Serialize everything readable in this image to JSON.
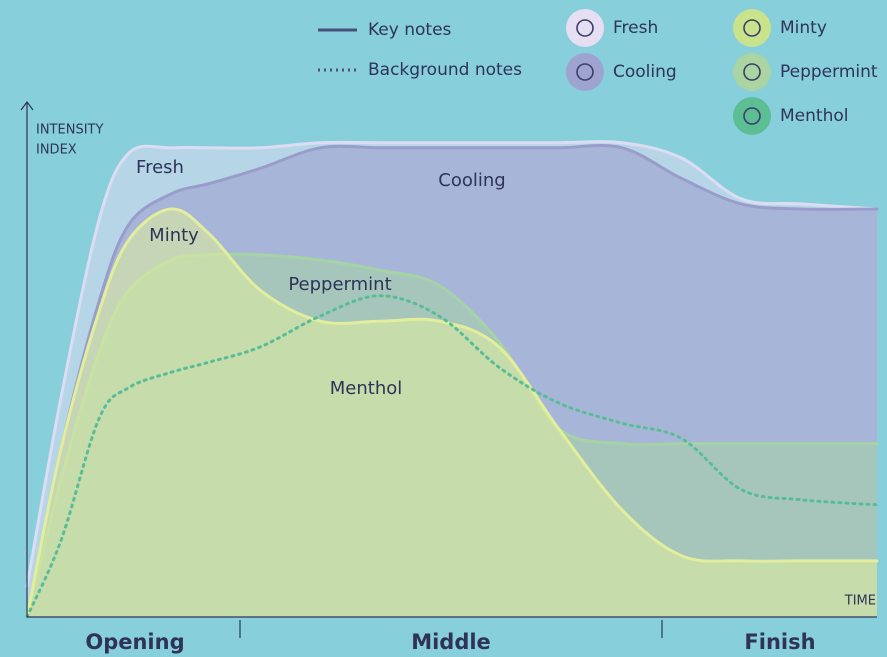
{
  "chart_data": {
    "type": "area",
    "y_label_lines": [
      "INTENSITY",
      "INDEX"
    ],
    "x_label": "TIME",
    "phases": [
      "Opening",
      "Middle",
      "Finish"
    ],
    "legend_styles": [
      {
        "label": "Key notes",
        "style": "solid"
      },
      {
        "label": "Background notes",
        "style": "dotted"
      }
    ],
    "xlim": [
      0,
      100
    ],
    "ylim": [
      0,
      100
    ],
    "x": [
      0,
      4,
      8.5,
      12,
      17,
      21.5,
      27.5,
      34.5,
      41.5,
      48.5,
      55.5,
      62.5,
      70,
      77,
      84,
      91,
      100
    ],
    "series": [
      {
        "name": "Fresh",
        "color": "#dcdcf2",
        "icon_color": "#e6def3",
        "style": "solid",
        "fill": true,
        "values": [
          6,
          43,
          78,
          91,
          92,
          92,
          92,
          93,
          93,
          93,
          93,
          93,
          93,
          90,
          82,
          81,
          80
        ]
      },
      {
        "name": "Cooling",
        "color": "#9a9cca",
        "icon_color": "#9ea3cf",
        "style": "solid",
        "fill": true,
        "values": [
          0,
          33,
          62,
          77,
          83,
          85,
          88,
          92,
          92,
          92,
          92,
          92,
          92,
          86,
          81,
          80,
          80
        ]
      },
      {
        "name": "Peppermint",
        "color": "#a6d3a6",
        "icon_color": "#aad4a2",
        "style": "solid",
        "fill": true,
        "values": [
          0,
          27,
          52,
          64,
          70,
          71,
          71,
          70,
          68,
          65,
          54,
          37,
          34,
          34,
          34,
          34,
          34
        ]
      },
      {
        "name": "Minty",
        "color": "#e2ee9c",
        "icon_color": "#c9e28c",
        "style": "solid",
        "fill": true,
        "values": [
          0,
          33,
          60,
          74,
          80,
          75,
          64,
          58,
          58,
          58,
          53,
          37,
          21,
          12,
          11,
          11,
          11
        ]
      },
      {
        "name": "Menthol",
        "color": "#58bd97",
        "icon_color": "#5dbd94",
        "style": "dotted",
        "fill": false,
        "values": [
          0,
          15,
          39,
          45,
          48,
          50,
          53,
          59,
          63,
          59,
          49,
          42,
          38,
          35,
          25,
          23,
          22
        ]
      }
    ]
  }
}
